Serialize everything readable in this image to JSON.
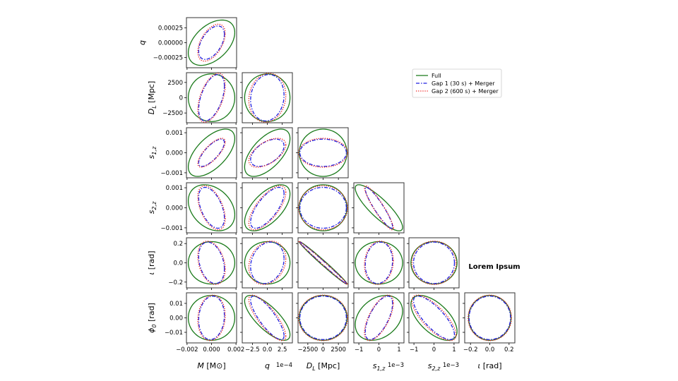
{
  "chart_data": {
    "type": "corner-ellipses",
    "annotation": "Lorem Ipsum",
    "legend": {
      "placement": "upper-right",
      "entries": [
        "Full",
        "Gap 1 (30 s) + Merger",
        "Gap 2 (600 s) + Merger"
      ]
    },
    "series": [
      {
        "name": "Full",
        "color": "#1a7a1a",
        "style": "solid",
        "sigma": {
          "M": 0.0019,
          "q": 0.00038,
          "DL": 3900,
          "s1z": 0.00118,
          "s2z": 0.00115,
          "iota": 0.22,
          "phi0": 0.0155
        }
      },
      {
        "name": "Gap 1 (30 s) + Merger",
        "color": "#1f1fe0",
        "style": "dashdot",
        "sigma": {
          "M": 0.00105,
          "q": 0.00028,
          "DL": 3800,
          "s1z": 0.00068,
          "s2z": 0.00102,
          "iota": 0.215,
          "phi0": 0.015
        }
      },
      {
        "name": "Gap 2 (600 s) + Merger",
        "color": "#ee2222",
        "style": "dotted",
        "sigma": {
          "M": 0.00112,
          "q": 0.00031,
          "DL": 4000,
          "s1z": 0.00072,
          "s2z": 0.0011,
          "iota": 0.225,
          "phi0": 0.0157
        }
      }
    ],
    "correlations": {
      "M|q": [
        0.45,
        0.5,
        0.5
      ],
      "M|DL": [
        0.0,
        0.5,
        0.5
      ],
      "q|DL": [
        0.0,
        0.1,
        0.1
      ],
      "M|s1z": [
        0.6,
        0.75,
        0.75
      ],
      "q|s1z": [
        0.6,
        0.5,
        0.55
      ],
      "DL|s1z": [
        0.0,
        0.0,
        0.0
      ],
      "M|s2z": [
        -0.3,
        -0.5,
        -0.5
      ],
      "q|s2z": [
        0.6,
        0.7,
        0.7
      ],
      "DL|s2z": [
        0.0,
        0.0,
        0.0
      ],
      "s1z|s2z": [
        -0.85,
        -0.92,
        -0.92
      ],
      "M|iota": [
        0.0,
        -0.3,
        -0.3
      ],
      "q|iota": [
        0.0,
        0.2,
        0.2
      ],
      "DL|iota": [
        -0.99,
        -0.995,
        -0.995
      ],
      "s1z|iota": [
        0.0,
        0.1,
        0.1
      ],
      "s2z|iota": [
        0.0,
        0.0,
        0.0
      ],
      "M|phi0": [
        0.0,
        0.1,
        0.1
      ],
      "q|phi0": [
        -0.75,
        -0.82,
        -0.8
      ],
      "DL|phi0": [
        0.0,
        0.0,
        0.0
      ],
      "s1z|phi0": [
        0.3,
        0.65,
        0.65
      ],
      "s2z|phi0": [
        -0.6,
        -0.78,
        -0.75
      ],
      "iota|phi0": [
        0.0,
        0.0,
        0.0
      ]
    },
    "params": [
      {
        "key": "M",
        "label": {
          "sym": "M",
          "sub": "",
          "unit": " [M⊙]"
        },
        "range": [
          -0.00205,
          0.00205
        ],
        "x_ticks": [
          -0.002,
          0,
          0.002
        ],
        "x_tick_labels": [
          "−0.002",
          "0.000",
          "0.002"
        ],
        "offset": ""
      },
      {
        "key": "q",
        "label": {
          "sym": "q",
          "sub": "",
          "unit": ""
        },
        "range": [
          -0.00042,
          0.00042
        ],
        "x_ticks": [
          -0.00025,
          0,
          0.00025
        ],
        "x_tick_labels": [
          "−2.5",
          "0.0",
          "2.5"
        ],
        "y_ticks": [
          -0.00025,
          0,
          0.00025
        ],
        "y_tick_labels": [
          "−0.00025",
          "0.00000",
          "0.00025"
        ],
        "offset": "1e−4"
      },
      {
        "key": "DL",
        "label": {
          "sym": "D",
          "sub": "L",
          "unit": " [Mpc]"
        },
        "range": [
          -4100,
          4100
        ],
        "x_ticks": [
          -2500,
          0,
          2500
        ],
        "x_tick_labels": [
          "−2500",
          "0",
          "2500"
        ],
        "y_ticks": [
          -2500,
          0,
          2500
        ],
        "y_tick_labels": [
          "−2500",
          "0",
          "2500"
        ],
        "offset": ""
      },
      {
        "key": "s1z",
        "label": {
          "sym": "s",
          "sub": "1,z",
          "unit": ""
        },
        "range": [
          -0.00125,
          0.00125
        ],
        "x_ticks": [
          -0.001,
          0,
          0.001
        ],
        "x_tick_labels": [
          "−1",
          "0",
          "1"
        ],
        "y_ticks": [
          -0.001,
          0,
          0.001
        ],
        "y_tick_labels": [
          "−0.001",
          "0.000",
          "0.001"
        ],
        "offset": "1e−3"
      },
      {
        "key": "s2z",
        "label": {
          "sym": "s",
          "sub": "2,z",
          "unit": ""
        },
        "range": [
          -0.00125,
          0.00125
        ],
        "x_ticks": [
          -0.001,
          0,
          0.001
        ],
        "x_tick_labels": [
          "−1",
          "0",
          "1"
        ],
        "y_ticks": [
          -0.001,
          0,
          0.001
        ],
        "y_tick_labels": [
          "−0.001",
          "0.000",
          "0.001"
        ],
        "offset": "1e−3"
      },
      {
        "key": "iota",
        "label": {
          "sym": "ι",
          "sub": "",
          "unit": " [rad]"
        },
        "range": [
          -0.26,
          0.26
        ],
        "x_ticks": [
          -0.2,
          0,
          0.2
        ],
        "x_tick_labels": [
          "−0.2",
          "0.0",
          "0.2"
        ],
        "y_ticks": [
          -0.2,
          0,
          0.2
        ],
        "y_tick_labels": [
          "−0.2",
          "0.0",
          "0.2"
        ],
        "offset": ""
      },
      {
        "key": "phi0",
        "label": {
          "sym": "ϕ",
          "sub": "0",
          "unit": " [rad]"
        },
        "range": [
          -0.0173,
          0.0173
        ],
        "y_ticks": [
          -0.01,
          0,
          0.01
        ],
        "y_tick_labels": [
          "−0.01",
          "0.00",
          "0.01"
        ],
        "offset": ""
      }
    ]
  }
}
